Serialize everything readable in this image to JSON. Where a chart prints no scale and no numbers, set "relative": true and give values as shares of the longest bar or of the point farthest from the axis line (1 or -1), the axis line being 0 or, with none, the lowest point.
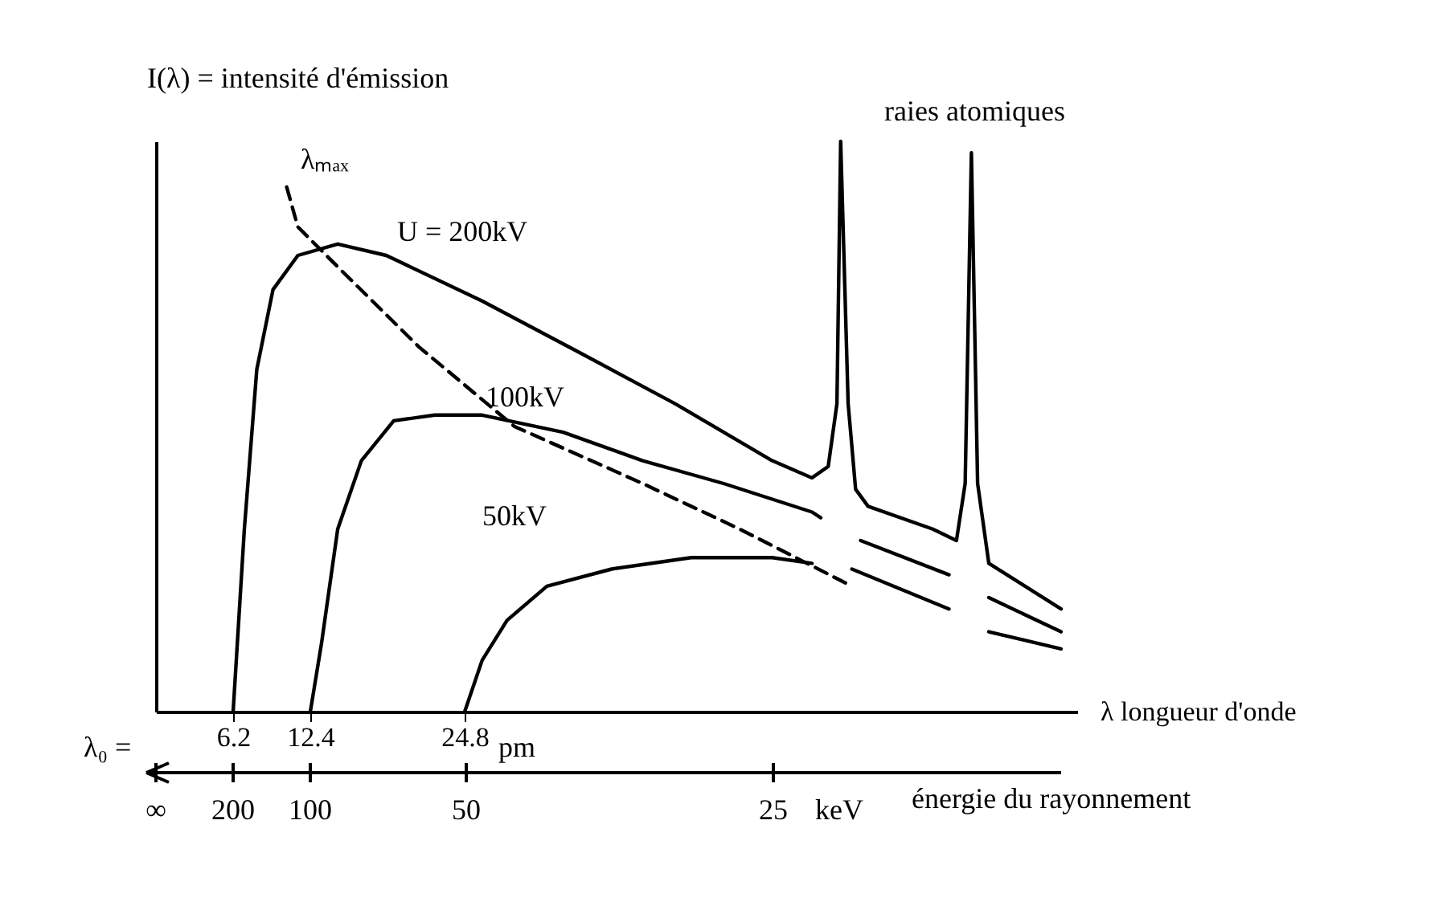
{
  "chart_data": {
    "type": "line",
    "relative": true,
    "ylabel": "I(λ) = intensité d'émission",
    "xlabel": "λ longueur d'onde",
    "xlim": [
      0,
      74
    ],
    "xticks": [
      6.2,
      12.4,
      24.8
    ],
    "annotations": [
      "λ₀ =",
      "pm",
      "∞",
      "200",
      "100",
      "50",
      "25",
      "keV",
      "énergie du rayonnement",
      "raies atomiques"
    ],
    "series": [
      {
        "name": "U = 200kV",
        "color": "#000000",
        "x": [
          6.2,
          7.1,
          8.1,
          9.4,
          11.4,
          14.6,
          18.5,
          26.2,
          34.0,
          41.7,
          49.5,
          52.7,
          54.0,
          54.7,
          55.0,
          55.6,
          56.2,
          57.2,
          62.4,
          64.3,
          65.0,
          65.5,
          66.0,
          66.9,
          72.7
        ],
        "values": [
          0,
          0.32,
          0.6,
          0.74,
          0.8,
          0.82,
          0.8,
          0.72,
          0.63,
          0.54,
          0.44,
          0.41,
          0.43,
          0.54,
          1,
          0.54,
          0.39,
          0.36,
          0.32,
          0.3,
          0.4,
          0.98,
          0.4,
          0.26,
          0.18
        ]
      },
      {
        "name": "100kV",
        "color": "#000000",
        "x": [
          12.4,
          13.3,
          14.6,
          16.5,
          19.1,
          22.4,
          26.2,
          32.7,
          39.1,
          45.6,
          52.7,
          53.4,
          55.0,
          56.6,
          63.7,
          65.5,
          66.9,
          72.7
        ],
        "values": [
          0,
          0.12,
          0.32,
          0.44,
          0.51,
          0.52,
          0.52,
          0.49,
          0.44,
          0.4,
          0.35,
          0.34,
          null,
          0.3,
          0.24,
          null,
          0.2,
          0.14
        ]
      },
      {
        "name": "50kV",
        "color": "#000000",
        "x": [
          24.8,
          26.2,
          28.2,
          31.4,
          36.6,
          43.0,
          49.5,
          52.7,
          55.0,
          55.9,
          63.7,
          65.5,
          66.9,
          72.7
        ],
        "values": [
          0,
          0.09,
          0.16,
          0.22,
          0.25,
          0.27,
          0.27,
          0.26,
          null,
          0.25,
          0.18,
          null,
          0.14,
          0.11
        ]
      },
      {
        "name": "λₘₐₓ",
        "color": "#000000",
        "line_style": "dashed",
        "x": [
          10.5,
          11.4,
          14.6,
          21.1,
          28.8,
          39.1,
          46.9,
          55.9
        ],
        "values": [
          0.92,
          0.85,
          0.78,
          0.64,
          0.5,
          0.4,
          0.32,
          0.22
        ]
      }
    ]
  }
}
